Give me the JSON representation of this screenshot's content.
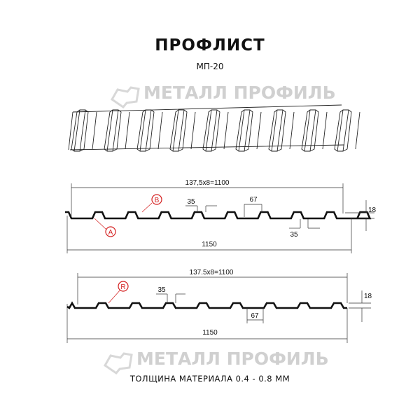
{
  "header": {
    "title": "ПРОФЛИСТ",
    "subtitle": "МП-20"
  },
  "watermark": {
    "text": "МЕТАЛЛ ПРОФИЛЬ"
  },
  "profile_a": {
    "overall_pitch": "137,5x8=1100",
    "total_width": "1150",
    "height": "18",
    "top_width": "35",
    "bottom_width": "35",
    "rib_width": "67",
    "callout_a": "A",
    "callout_b": "B"
  },
  "profile_r": {
    "overall_pitch": "137.5x8=1100",
    "total_width": "1150",
    "height": "18",
    "top_width": "35",
    "rib_width": "67",
    "callout_r": "R"
  },
  "footer": {
    "thickness": "ТОЛЩИНА МАТЕРИАЛА 0.4 - 0.8 ММ"
  },
  "colors": {
    "line": "#111111",
    "callout": "#d42020",
    "watermark": "#d0d0d0"
  }
}
